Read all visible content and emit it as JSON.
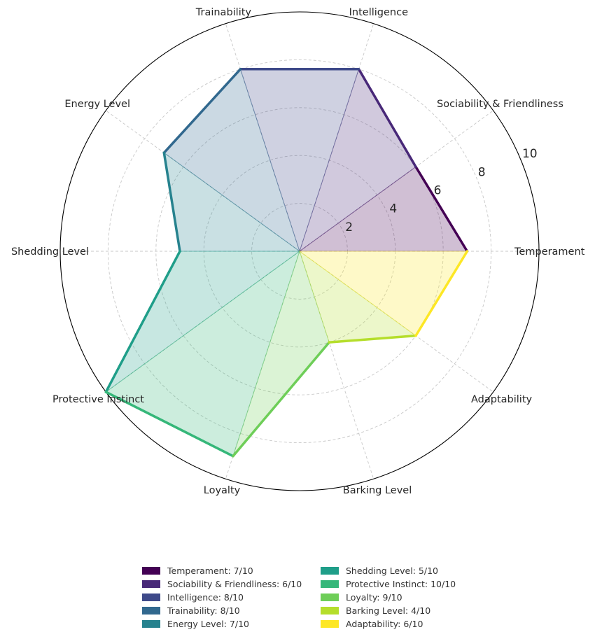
{
  "chart_data": {
    "type": "radar",
    "title": "",
    "categories": [
      "Temperament",
      "Sociability & Friendliness",
      "Intelligence",
      "Trainability",
      "Energy Level",
      "Shedding Level",
      "Protective Instinct",
      "Loyalty",
      "Barking Level",
      "Adaptability"
    ],
    "values": [
      7,
      6,
      8,
      8,
      7,
      5,
      10,
      9,
      4,
      6
    ],
    "colors": [
      "#440154",
      "#482878",
      "#3e4989",
      "#31688e",
      "#26828e",
      "#1f9e89",
      "#35b779",
      "#6ece58",
      "#b5de2b",
      "#fde725"
    ],
    "rlim": [
      0,
      10
    ],
    "rticks": [
      "2",
      "4",
      "6",
      "8",
      "10"
    ],
    "grid": true,
    "legend_position": "bottom",
    "legend": [
      "Temperament: 7/10",
      "Sociability & Friendliness: 6/10",
      "Intelligence: 8/10",
      "Trainability: 8/10",
      "Energy Level: 7/10",
      "Shedding Level: 5/10",
      "Protective Instinct: 10/10",
      "Loyalty: 9/10",
      "Barking Level: 4/10",
      "Adaptability: 6/10"
    ]
  }
}
